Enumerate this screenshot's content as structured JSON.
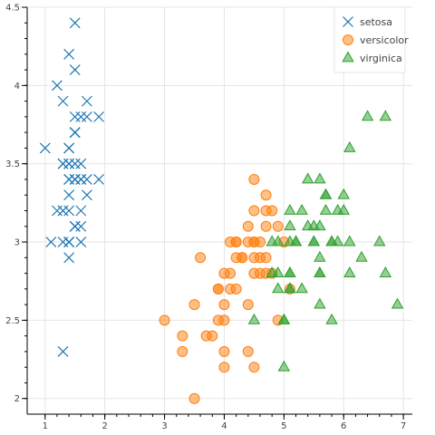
{
  "chart_data": {
    "type": "scatter",
    "title": "",
    "xlabel": "",
    "ylabel": "",
    "xlim": [
      0.7,
      7.15
    ],
    "ylim": [
      1.9,
      4.5
    ],
    "x_ticks": [
      1,
      2,
      3,
      4,
      5,
      6,
      7
    ],
    "y_ticks": [
      2,
      2.5,
      3,
      3.5,
      4,
      4.5
    ],
    "grid": true,
    "legend": {
      "position": "top-right"
    },
    "series": [
      {
        "name": "setosa",
        "marker": "x",
        "color": "#1f77b4",
        "points": [
          [
            1.4,
            3.5
          ],
          [
            1.4,
            3.0
          ],
          [
            1.3,
            3.2
          ],
          [
            1.5,
            3.1
          ],
          [
            1.4,
            3.6
          ],
          [
            1.7,
            3.9
          ],
          [
            1.4,
            3.4
          ],
          [
            1.5,
            3.4
          ],
          [
            1.4,
            2.9
          ],
          [
            1.5,
            3.1
          ],
          [
            1.5,
            3.7
          ],
          [
            1.6,
            3.4
          ],
          [
            1.4,
            3.0
          ],
          [
            1.1,
            3.0
          ],
          [
            1.2,
            4.0
          ],
          [
            1.5,
            4.4
          ],
          [
            1.3,
            3.9
          ],
          [
            1.4,
            3.5
          ],
          [
            1.7,
            3.8
          ],
          [
            1.5,
            3.8
          ],
          [
            1.7,
            3.4
          ],
          [
            1.5,
            3.7
          ],
          [
            1.0,
            3.6
          ],
          [
            1.7,
            3.3
          ],
          [
            1.9,
            3.4
          ],
          [
            1.6,
            3.0
          ],
          [
            1.6,
            3.4
          ],
          [
            1.5,
            3.5
          ],
          [
            1.4,
            3.4
          ],
          [
            1.6,
            3.2
          ],
          [
            1.6,
            3.1
          ],
          [
            1.5,
            3.4
          ],
          [
            1.5,
            4.1
          ],
          [
            1.4,
            4.2
          ],
          [
            1.5,
            3.1
          ],
          [
            1.2,
            3.2
          ],
          [
            1.3,
            3.5
          ],
          [
            1.4,
            3.6
          ],
          [
            1.3,
            3.0
          ],
          [
            1.5,
            3.4
          ],
          [
            1.3,
            3.5
          ],
          [
            1.3,
            2.3
          ],
          [
            1.3,
            3.2
          ],
          [
            1.6,
            3.5
          ],
          [
            1.9,
            3.8
          ],
          [
            1.4,
            3.0
          ],
          [
            1.6,
            3.8
          ],
          [
            1.4,
            3.2
          ],
          [
            1.5,
            3.7
          ],
          [
            1.4,
            3.3
          ]
        ]
      },
      {
        "name": "versicolor",
        "marker": "circle",
        "color": "#ff7f0e",
        "points": [
          [
            4.7,
            3.2
          ],
          [
            4.5,
            3.2
          ],
          [
            4.9,
            3.1
          ],
          [
            4.0,
            2.3
          ],
          [
            4.6,
            2.8
          ],
          [
            4.5,
            2.8
          ],
          [
            4.7,
            3.3
          ],
          [
            3.3,
            2.4
          ],
          [
            4.6,
            2.9
          ],
          [
            3.9,
            2.7
          ],
          [
            3.5,
            2.0
          ],
          [
            4.2,
            3.0
          ],
          [
            4.0,
            2.2
          ],
          [
            4.7,
            2.9
          ],
          [
            3.6,
            2.9
          ],
          [
            4.4,
            3.1
          ],
          [
            4.5,
            3.0
          ],
          [
            4.1,
            2.7
          ],
          [
            4.5,
            2.2
          ],
          [
            3.9,
            2.5
          ],
          [
            4.8,
            3.2
          ],
          [
            4.0,
            2.8
          ],
          [
            4.9,
            2.5
          ],
          [
            4.7,
            2.8
          ],
          [
            4.3,
            2.9
          ],
          [
            4.4,
            3.0
          ],
          [
            4.8,
            2.8
          ],
          [
            5.0,
            3.0
          ],
          [
            4.5,
            2.9
          ],
          [
            3.5,
            2.6
          ],
          [
            3.8,
            2.4
          ],
          [
            3.7,
            2.4
          ],
          [
            3.9,
            2.7
          ],
          [
            5.1,
            2.7
          ],
          [
            4.5,
            3.0
          ],
          [
            4.5,
            3.4
          ],
          [
            4.7,
            3.1
          ],
          [
            4.4,
            2.3
          ],
          [
            4.1,
            3.0
          ],
          [
            4.0,
            2.5
          ],
          [
            4.4,
            2.6
          ],
          [
            4.6,
            3.0
          ],
          [
            4.0,
            2.6
          ],
          [
            3.3,
            2.3
          ],
          [
            4.2,
            2.7
          ],
          [
            4.2,
            3.0
          ],
          [
            4.2,
            2.9
          ],
          [
            4.3,
            2.9
          ],
          [
            3.0,
            2.5
          ],
          [
            4.1,
            2.8
          ]
        ]
      },
      {
        "name": "virginica",
        "marker": "triangle",
        "color": "#2ca02c",
        "points": [
          [
            6.0,
            3.3
          ],
          [
            5.1,
            2.7
          ],
          [
            5.9,
            3.0
          ],
          [
            5.6,
            2.9
          ],
          [
            5.8,
            3.0
          ],
          [
            6.6,
            3.0
          ],
          [
            4.5,
            2.5
          ],
          [
            6.3,
            2.9
          ],
          [
            5.8,
            2.5
          ],
          [
            6.1,
            3.6
          ],
          [
            5.1,
            3.2
          ],
          [
            5.3,
            2.7
          ],
          [
            5.5,
            3.0
          ],
          [
            5.0,
            2.5
          ],
          [
            5.1,
            2.8
          ],
          [
            5.3,
            3.2
          ],
          [
            5.5,
            3.0
          ],
          [
            6.7,
            3.8
          ],
          [
            6.9,
            2.6
          ],
          [
            5.0,
            2.2
          ],
          [
            5.7,
            3.2
          ],
          [
            4.9,
            2.8
          ],
          [
            6.7,
            2.8
          ],
          [
            4.9,
            2.7
          ],
          [
            5.7,
            3.3
          ],
          [
            6.0,
            3.2
          ],
          [
            4.8,
            2.8
          ],
          [
            4.9,
            3.0
          ],
          [
            5.6,
            2.8
          ],
          [
            5.8,
            3.0
          ],
          [
            6.1,
            2.8
          ],
          [
            6.4,
            3.8
          ],
          [
            5.6,
            2.8
          ],
          [
            5.1,
            2.8
          ],
          [
            5.6,
            2.6
          ],
          [
            6.1,
            3.0
          ],
          [
            5.6,
            3.4
          ],
          [
            5.5,
            3.1
          ],
          [
            4.8,
            3.0
          ],
          [
            5.4,
            3.1
          ],
          [
            5.6,
            3.1
          ],
          [
            5.1,
            3.1
          ],
          [
            5.1,
            2.7
          ],
          [
            5.9,
            3.2
          ],
          [
            5.7,
            3.3
          ],
          [
            5.2,
            3.0
          ],
          [
            5.0,
            2.5
          ],
          [
            5.2,
            3.0
          ],
          [
            5.4,
            3.4
          ],
          [
            5.1,
            3.0
          ]
        ]
      }
    ]
  }
}
